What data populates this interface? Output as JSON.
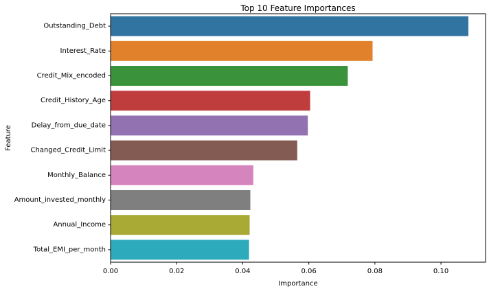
{
  "chart_data": {
    "type": "bar",
    "orientation": "horizontal",
    "title": "Top 10 Feature Importances",
    "xlabel": "Importance",
    "ylabel": "Feature",
    "xlim": [
      0,
      0.1135
    ],
    "grid": false,
    "x_ticks": [
      0.0,
      0.02,
      0.04,
      0.06,
      0.08,
      0.1
    ],
    "x_tick_labels": [
      "0.00",
      "0.02",
      "0.04",
      "0.06",
      "0.08",
      "0.10"
    ],
    "categories": [
      "Outstanding_Debt",
      "Interest_Rate",
      "Credit_Mix_encoded",
      "Credit_History_Age",
      "Delay_from_due_date",
      "Changed_Credit_Limit",
      "Monthly_Balance",
      "Amount_invested_monthly",
      "Annual_Income",
      "Total_EMI_per_month"
    ],
    "values": [
      0.1083,
      0.0793,
      0.0718,
      0.0604,
      0.0597,
      0.0565,
      0.0432,
      0.0423,
      0.0421,
      0.0419
    ],
    "colors": [
      "#3274a1",
      "#e1812c",
      "#3a923a",
      "#c03d3e",
      "#9372b2",
      "#845b53",
      "#d684bd",
      "#7f7f7f",
      "#a9aa35",
      "#2eaabd"
    ]
  }
}
